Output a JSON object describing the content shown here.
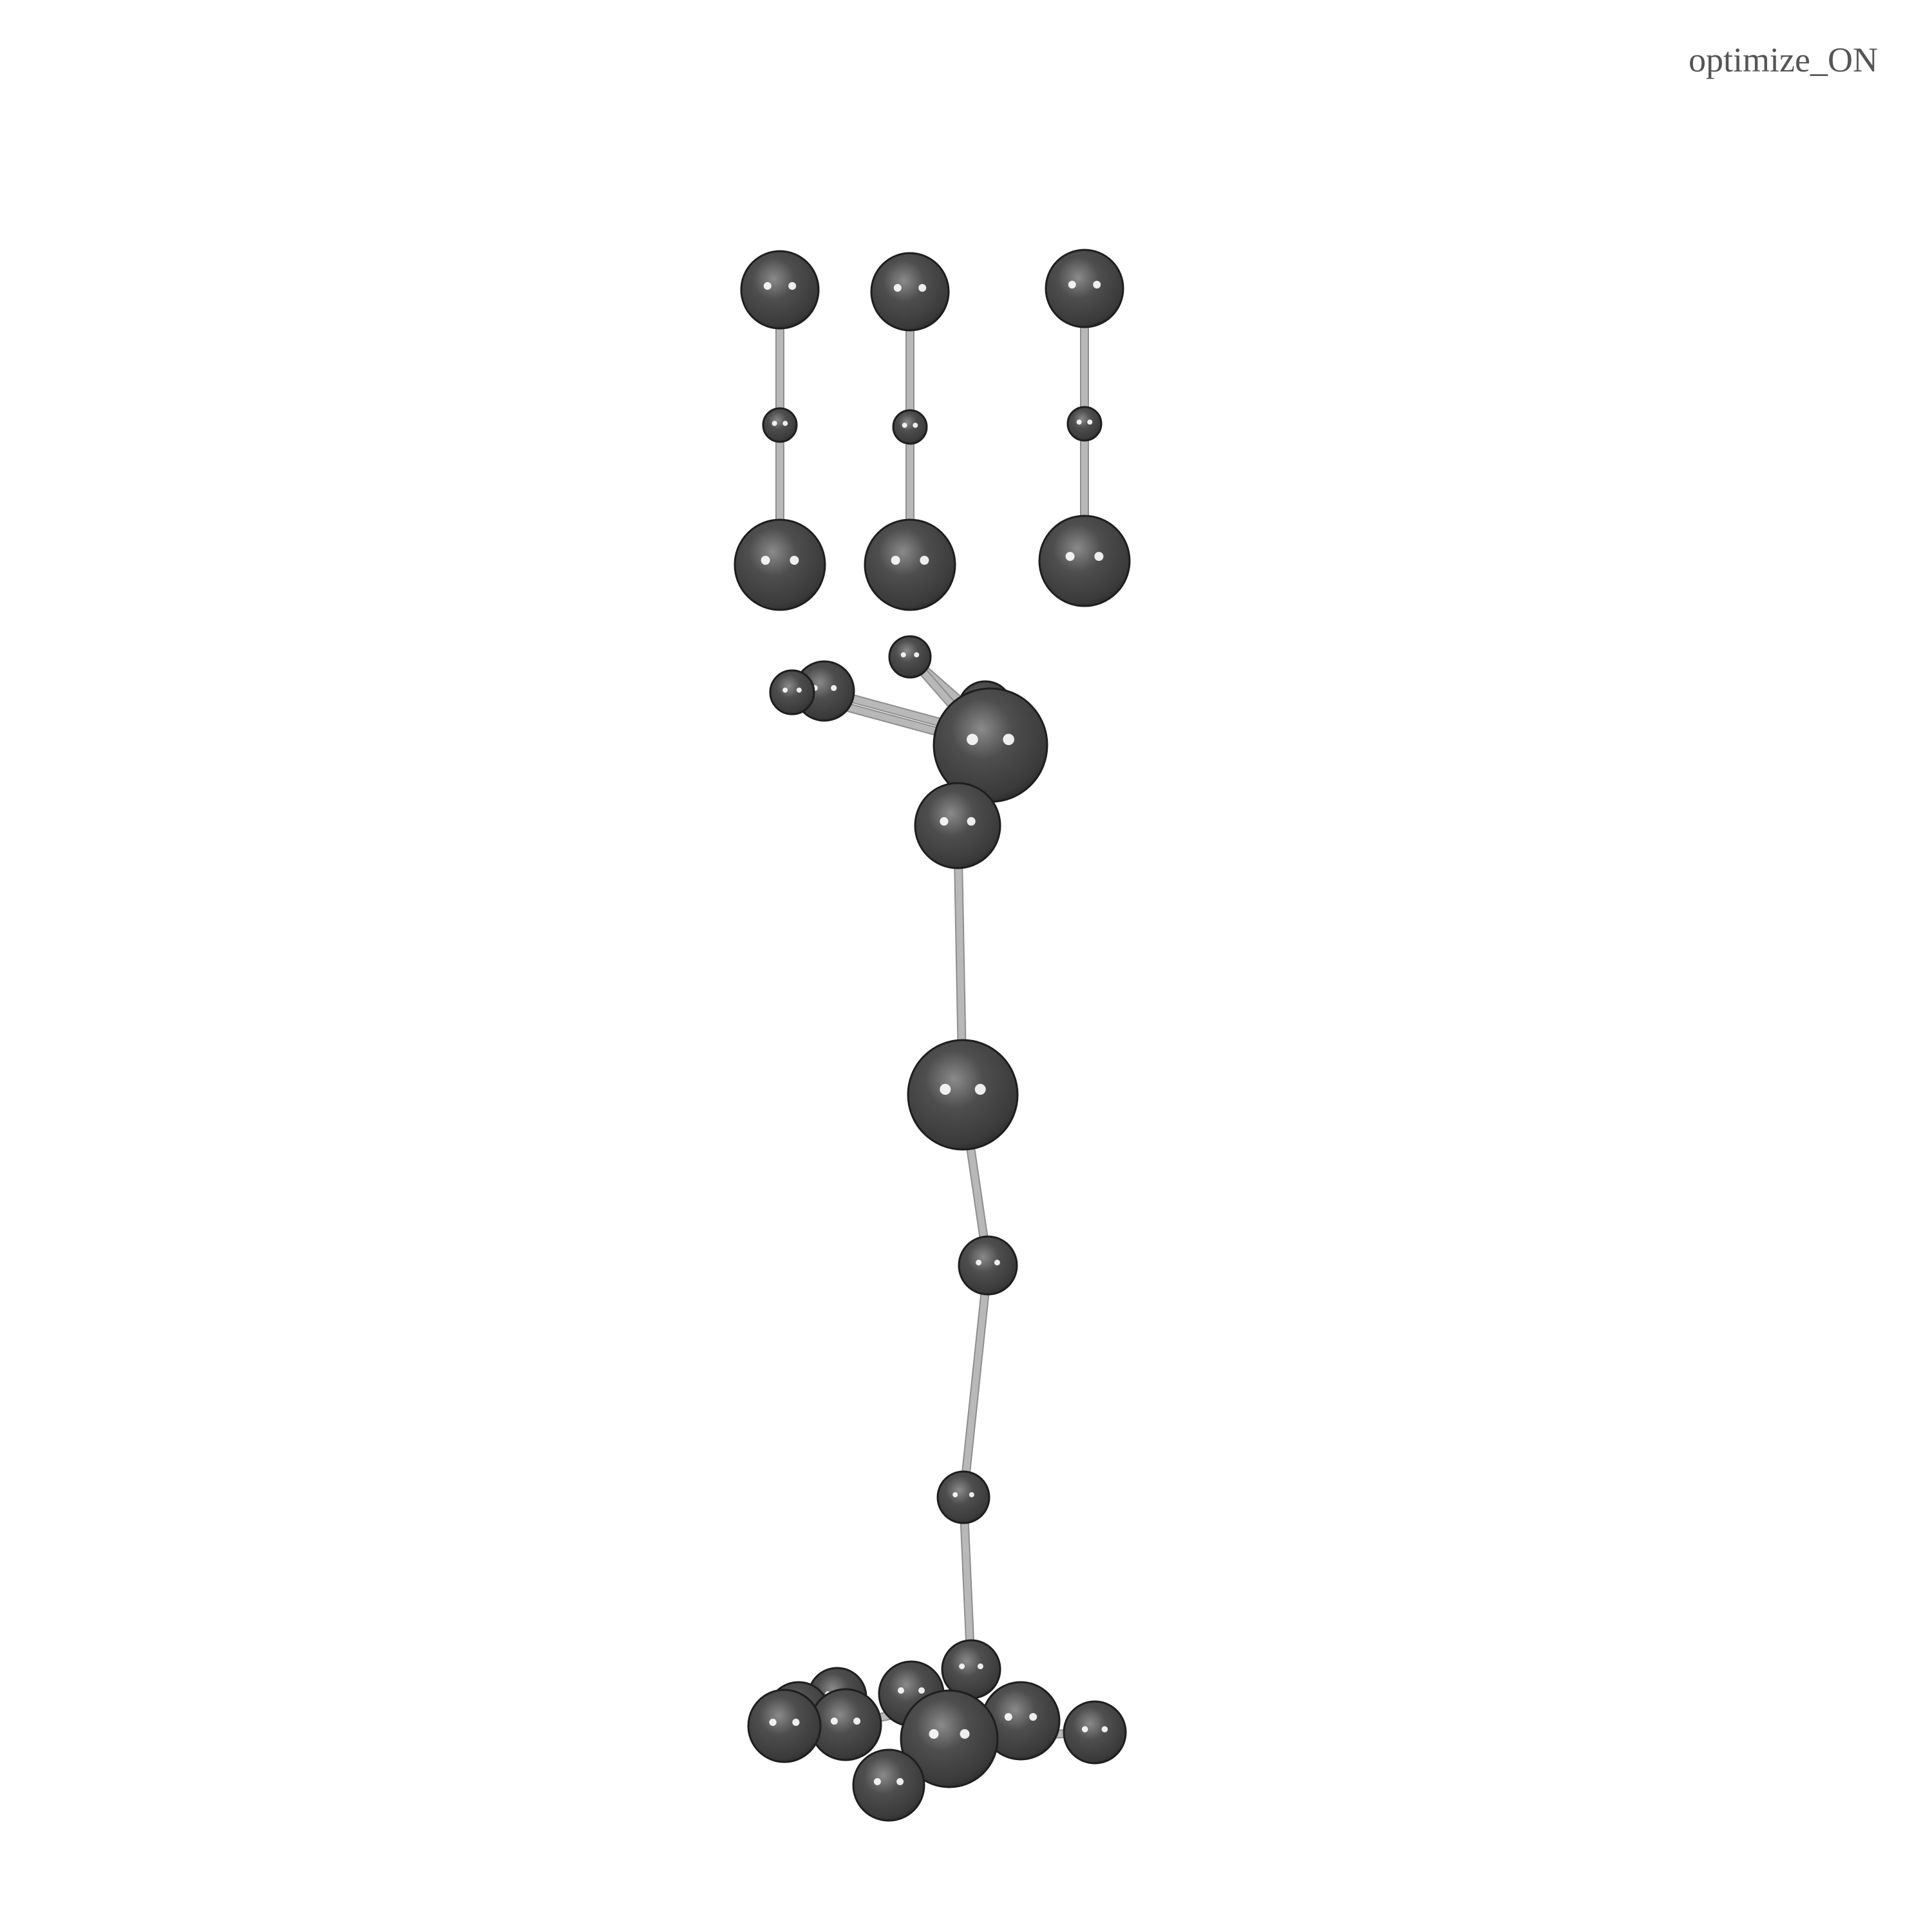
{
  "header": {
    "label": "optimize_ON"
  },
  "colors": {
    "background": "#ffffff",
    "atom": "#454545",
    "bond": "#b4b4b4",
    "label": "#555555"
  }
}
